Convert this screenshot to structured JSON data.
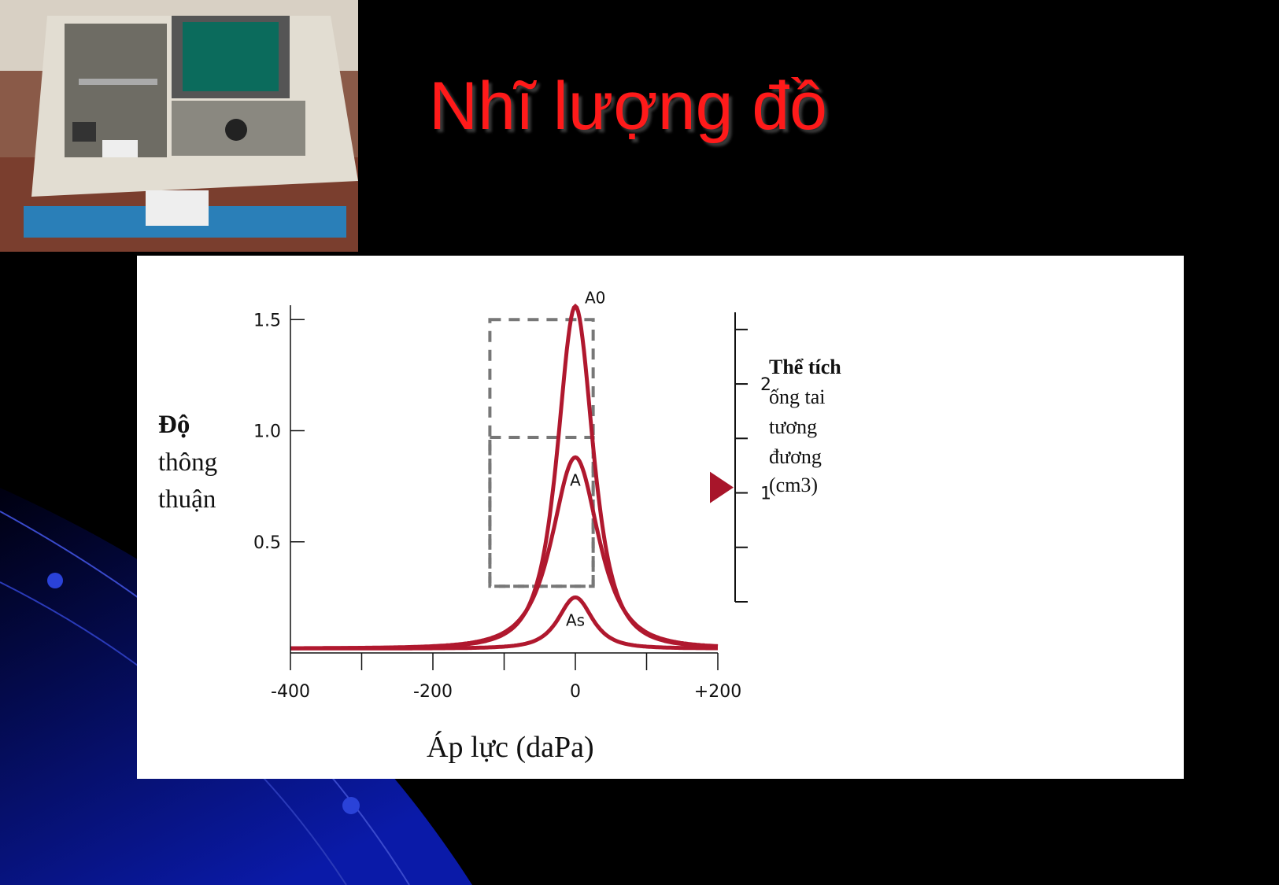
{
  "slide": {
    "title": "Nhĩ lượng đồ",
    "title_color": "#ff1a1a",
    "background_color": "#000000",
    "image": "tympanometer-device-photo"
  },
  "chart_data": {
    "type": "line",
    "title": "",
    "xlabel": "Áp lực (daPa)",
    "ylabel": [
      "Độ",
      "thông",
      "thuận"
    ],
    "xlim": [
      -400,
      200
    ],
    "ylim": [
      0,
      1.6
    ],
    "x_ticks": [
      "-400",
      "-200",
      "0",
      "+200"
    ],
    "x_tick_values": [
      -400,
      -200,
      0,
      200
    ],
    "y_ticks": [
      "0.5",
      "1.0",
      "1.5"
    ],
    "y_tick_values": [
      0.5,
      1.0,
      1.5
    ],
    "grid": false,
    "line_color": "#b0182e",
    "series": [
      {
        "name": "A0",
        "peak_x": 0,
        "peak_y": 1.56,
        "baseline": 0.02,
        "width": 40
      },
      {
        "name": "A",
        "peak_x": 0,
        "peak_y": 0.88,
        "baseline": 0.02,
        "width": 52
      },
      {
        "name": "As",
        "peak_x": 0,
        "peak_y": 0.25,
        "baseline": 0.02,
        "width": 38
      }
    ],
    "peak_labels": [
      "A0",
      "A",
      "As"
    ],
    "dashed_boxes": [
      {
        "x": [
          -120,
          25
        ],
        "y": [
          0.3,
          1.5
        ]
      },
      {
        "x": [
          -120,
          25
        ],
        "y": [
          0.3,
          0.97
        ]
      }
    ],
    "right_axis": {
      "label": [
        "Thể tích",
        "ống tai",
        "tương",
        "đương",
        "(cm3)"
      ],
      "ticks": [
        "1",
        "2"
      ],
      "tick_values": [
        1,
        2
      ],
      "range": [
        0,
        2.6
      ],
      "marker_value": 1.05
    }
  }
}
